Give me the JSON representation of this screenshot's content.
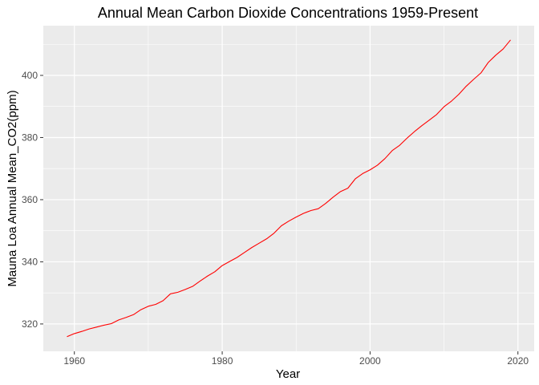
{
  "chart_data": {
    "type": "line",
    "title": "Annual Mean Carbon Dioxide Concentrations 1959-Present",
    "xlabel": "Year",
    "ylabel": "Mauna Loa Annual Mean_CO2(ppm)",
    "xlim": [
      1955.8,
      2022.2
    ],
    "ylim": [
      311.2,
      416.0
    ],
    "x_ticks": [
      1960,
      1980,
      2000,
      2020
    ],
    "y_ticks": [
      320,
      340,
      360,
      380,
      400
    ],
    "x_minor_ticks": [
      1970,
      1990,
      2010
    ],
    "y_minor_ticks": [
      310,
      330,
      350,
      370,
      390,
      410
    ],
    "grid": true,
    "legend": "none",
    "colors": {
      "panel": "#ebebeb",
      "grid": "#ffffff",
      "line": "#ff0000"
    },
    "series": [
      {
        "x": [
          1959,
          1960,
          1961,
          1962,
          1963,
          1964,
          1965,
          1966,
          1967,
          1968,
          1969,
          1970,
          1971,
          1972,
          1973,
          1974,
          1975,
          1976,
          1977,
          1978,
          1979,
          1980,
          1981,
          1982,
          1983,
          1984,
          1985,
          1986,
          1987,
          1988,
          1989,
          1990,
          1991,
          1992,
          1993,
          1994,
          1995,
          1996,
          1997,
          1998,
          1999,
          2000,
          2001,
          2002,
          2003,
          2004,
          2005,
          2006,
          2007,
          2008,
          2009,
          2010,
          2011,
          2012,
          2013,
          2014,
          2015,
          2016,
          2017,
          2018,
          2019
        ],
        "values": [
          315.9,
          316.9,
          317.6,
          318.4,
          319.0,
          319.6,
          320.1,
          321.3,
          322.1,
          323.0,
          324.6,
          325.7,
          326.3,
          327.5,
          329.7,
          330.2,
          331.1,
          332.1,
          333.8,
          335.4,
          336.8,
          338.8,
          340.1,
          341.4,
          343.0,
          344.6,
          346.0,
          347.4,
          349.2,
          351.6,
          353.1,
          354.4,
          355.6,
          356.5,
          357.1,
          358.8,
          360.8,
          362.6,
          363.7,
          366.7,
          368.4,
          369.6,
          371.1,
          373.2,
          375.8,
          377.5,
          379.8,
          381.9,
          383.8,
          385.6,
          387.4,
          389.9,
          391.7,
          393.9,
          396.5,
          398.7,
          400.8,
          404.2,
          406.5,
          408.5,
          411.4
        ]
      }
    ]
  }
}
